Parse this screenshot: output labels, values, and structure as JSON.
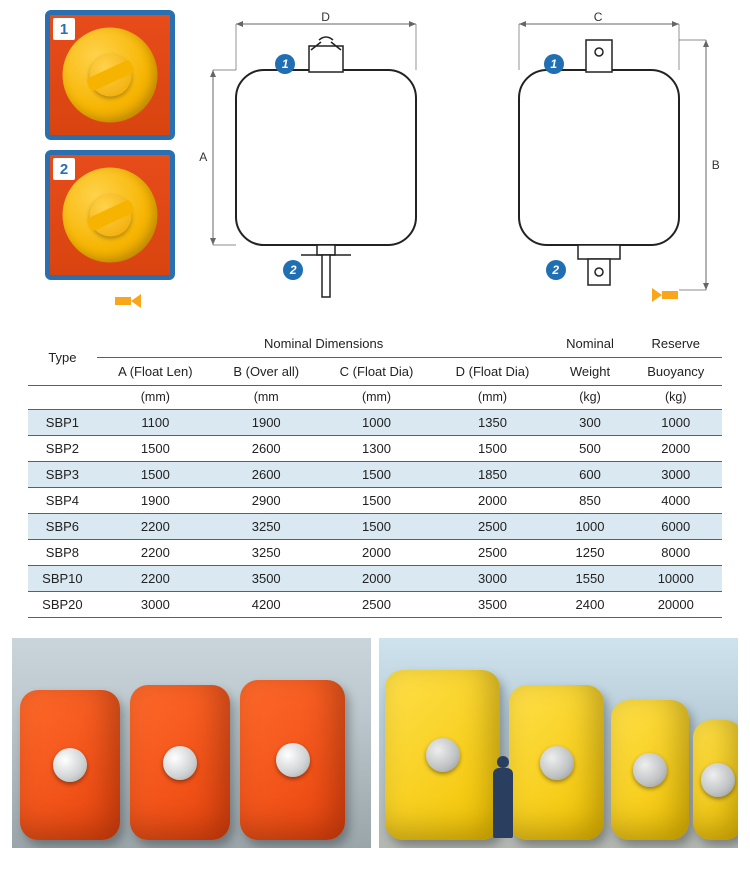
{
  "thumbnails": [
    {
      "badge": "1"
    },
    {
      "badge": "2"
    }
  ],
  "diagram_labels": {
    "d1_top": "D",
    "d1_left": "A",
    "d1_marker_top": "1",
    "d1_marker_bottom": "2",
    "d2_top": "C",
    "d2_right": "B",
    "d2_marker_top": "1",
    "d2_marker_bottom": "2"
  },
  "table": {
    "group_headers": {
      "type": "Type",
      "nominal_dimensions": "Nominal Dimensions",
      "nominal_weight": "Nominal",
      "reserve_buoyancy": "Reserve"
    },
    "sub_headers": {
      "a": "A (Float Len)",
      "b": "B (Over all)",
      "c": "C (Float Dia)",
      "d": "D (Float Dia)",
      "weight": "Weight",
      "buoyancy": "Buoyancy"
    },
    "unit_headers": {
      "a": "(mm)",
      "b": "(mm",
      "c": "(mm)",
      "d": "(mm)",
      "weight": "(kg)",
      "buoyancy": "(kg)"
    },
    "rows": [
      {
        "type": "SBP1",
        "a": "1100",
        "b": "1900",
        "c": "1000",
        "d": "1350",
        "w": "300",
        "r": "1000"
      },
      {
        "type": "SBP2",
        "a": "1500",
        "b": "2600",
        "c": "1300",
        "d": "1500",
        "w": "500",
        "r": "2000"
      },
      {
        "type": "SBP3",
        "a": "1500",
        "b": "2600",
        "c": "1500",
        "d": "1850",
        "w": "600",
        "r": "3000"
      },
      {
        "type": "SBP4",
        "a": "1900",
        "b": "2900",
        "c": "1500",
        "d": "2000",
        "w": "850",
        "r": "4000"
      },
      {
        "type": "SBP6",
        "a": "2200",
        "b": "3250",
        "c": "1500",
        "d": "2500",
        "w": "1000",
        "r": "6000"
      },
      {
        "type": "SBP8",
        "a": "2200",
        "b": "3250",
        "c": "2000",
        "d": "2500",
        "w": "1250",
        "r": "8000"
      },
      {
        "type": "SBP10",
        "a": "2200",
        "b": "3500",
        "c": "2000",
        "d": "3000",
        "w": "1550",
        "r": "10000"
      },
      {
        "type": "SBP20",
        "a": "3000",
        "b": "4200",
        "c": "2500",
        "d": "3500",
        "w": "2400",
        "r": "20000"
      }
    ]
  },
  "colors": {
    "accent_blue": "#1f6fb2",
    "row_stripe": "#d9e8f1",
    "border_blue": "#1f6fb2",
    "orange_buoy": "#e8430c",
    "yellow_buoy": "#f2c300",
    "arrow_orange": "#f9a61a"
  }
}
